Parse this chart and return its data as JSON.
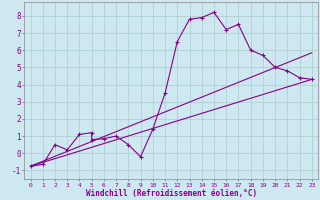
{
  "xlabel": "Windchill (Refroidissement éolien,°C)",
  "bg_color": "#cde8f0",
  "line_color": "#880088",
  "grid_color": "#aacccc",
  "xlim": [
    -0.5,
    23.5
  ],
  "ylim": [
    -1.5,
    8.8
  ],
  "yticks": [
    -1,
    0,
    1,
    2,
    3,
    4,
    5,
    6,
    7,
    8
  ],
  "xticks": [
    0,
    1,
    2,
    3,
    4,
    5,
    6,
    7,
    8,
    9,
    10,
    11,
    12,
    13,
    14,
    15,
    16,
    17,
    18,
    19,
    20,
    21,
    22,
    23
  ],
  "data_x": [
    0,
    1,
    2,
    3,
    4,
    5,
    5,
    6,
    7,
    8,
    9,
    10,
    11,
    12,
    13,
    14,
    15,
    16,
    17,
    18,
    19,
    20,
    21,
    22,
    23
  ],
  "data_y": [
    -0.75,
    -0.65,
    0.5,
    0.2,
    1.1,
    1.2,
    0.8,
    0.85,
    1.0,
    0.5,
    -0.2,
    1.4,
    3.5,
    6.5,
    7.8,
    7.9,
    8.2,
    7.2,
    7.5,
    6.0,
    5.7,
    5.0,
    4.8,
    4.4,
    4.3
  ],
  "line1_x": [
    0,
    23
  ],
  "line1_y": [
    -0.75,
    4.3
  ],
  "line2_x": [
    0,
    23
  ],
  "line2_y": [
    -0.75,
    5.85
  ]
}
